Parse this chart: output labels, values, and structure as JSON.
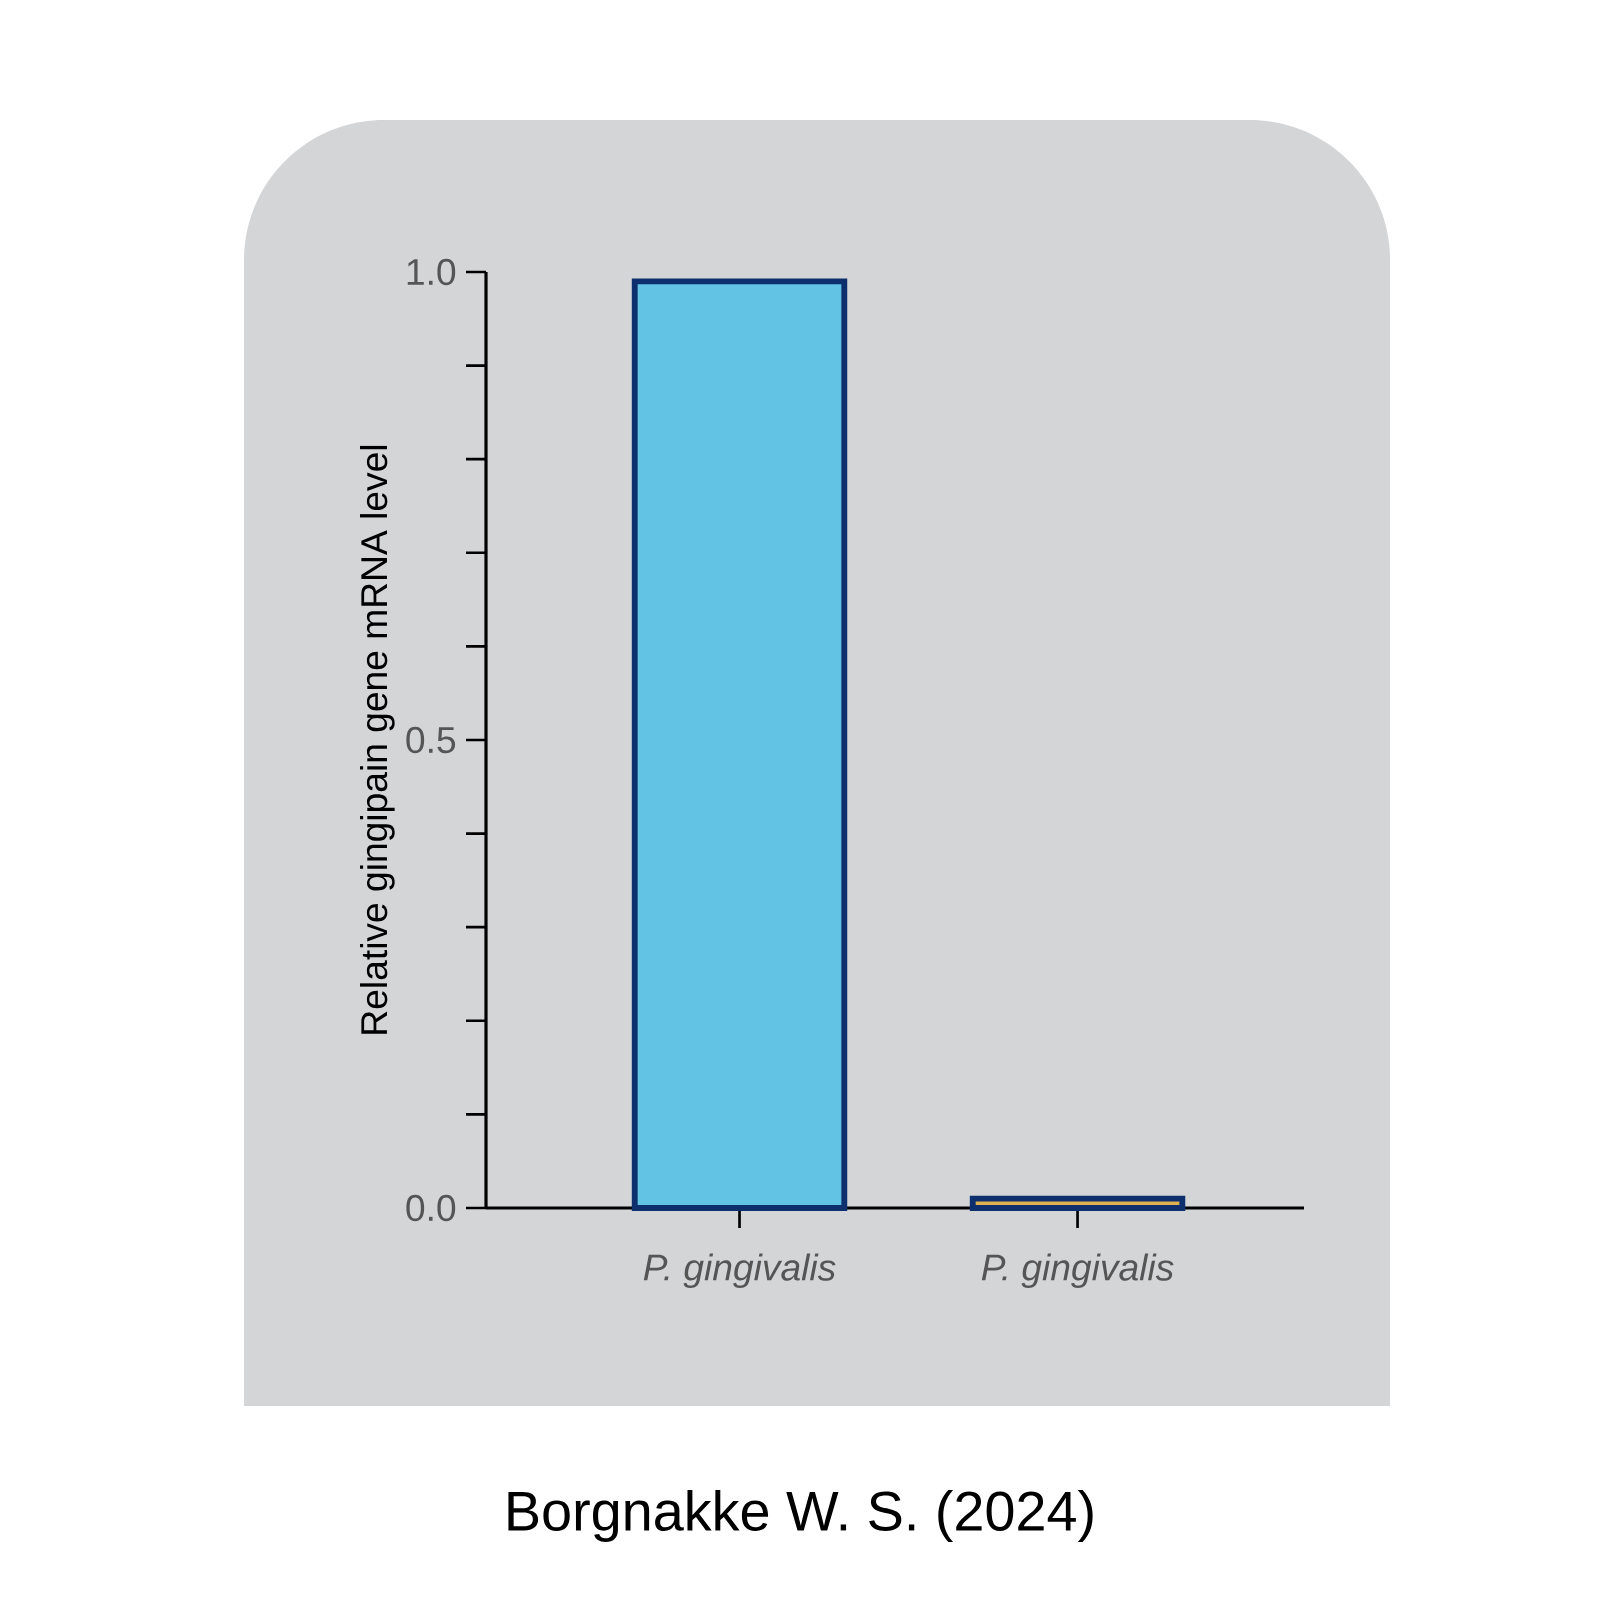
{
  "chart_data": {
    "type": "bar",
    "ylabel": "Relative gingipain gene mRNA level",
    "categories": [
      "P. gingivalis",
      "P. gingivalis"
    ],
    "values": [
      0.99,
      0.01
    ],
    "colors": [
      "#62c3e4",
      "#e0b050"
    ],
    "ylim": [
      0,
      1.0
    ],
    "yticks": [
      {
        "value": 0,
        "label": "0.0"
      },
      {
        "value": 0.1,
        "label": null
      },
      {
        "value": 0.2,
        "label": null
      },
      {
        "value": 0.3,
        "label": null
      },
      {
        "value": 0.4,
        "label": null
      },
      {
        "value": 0.5,
        "label": "0.5"
      },
      {
        "value": 0.6,
        "label": null
      },
      {
        "value": 0.7,
        "label": null
      },
      {
        "value": 0.8,
        "label": null
      },
      {
        "value": 0.9,
        "label": null
      },
      {
        "value": 1.0,
        "label": "1.0"
      }
    ],
    "annotations": [
      "Borgnakke W. S. (2024)"
    ]
  }
}
